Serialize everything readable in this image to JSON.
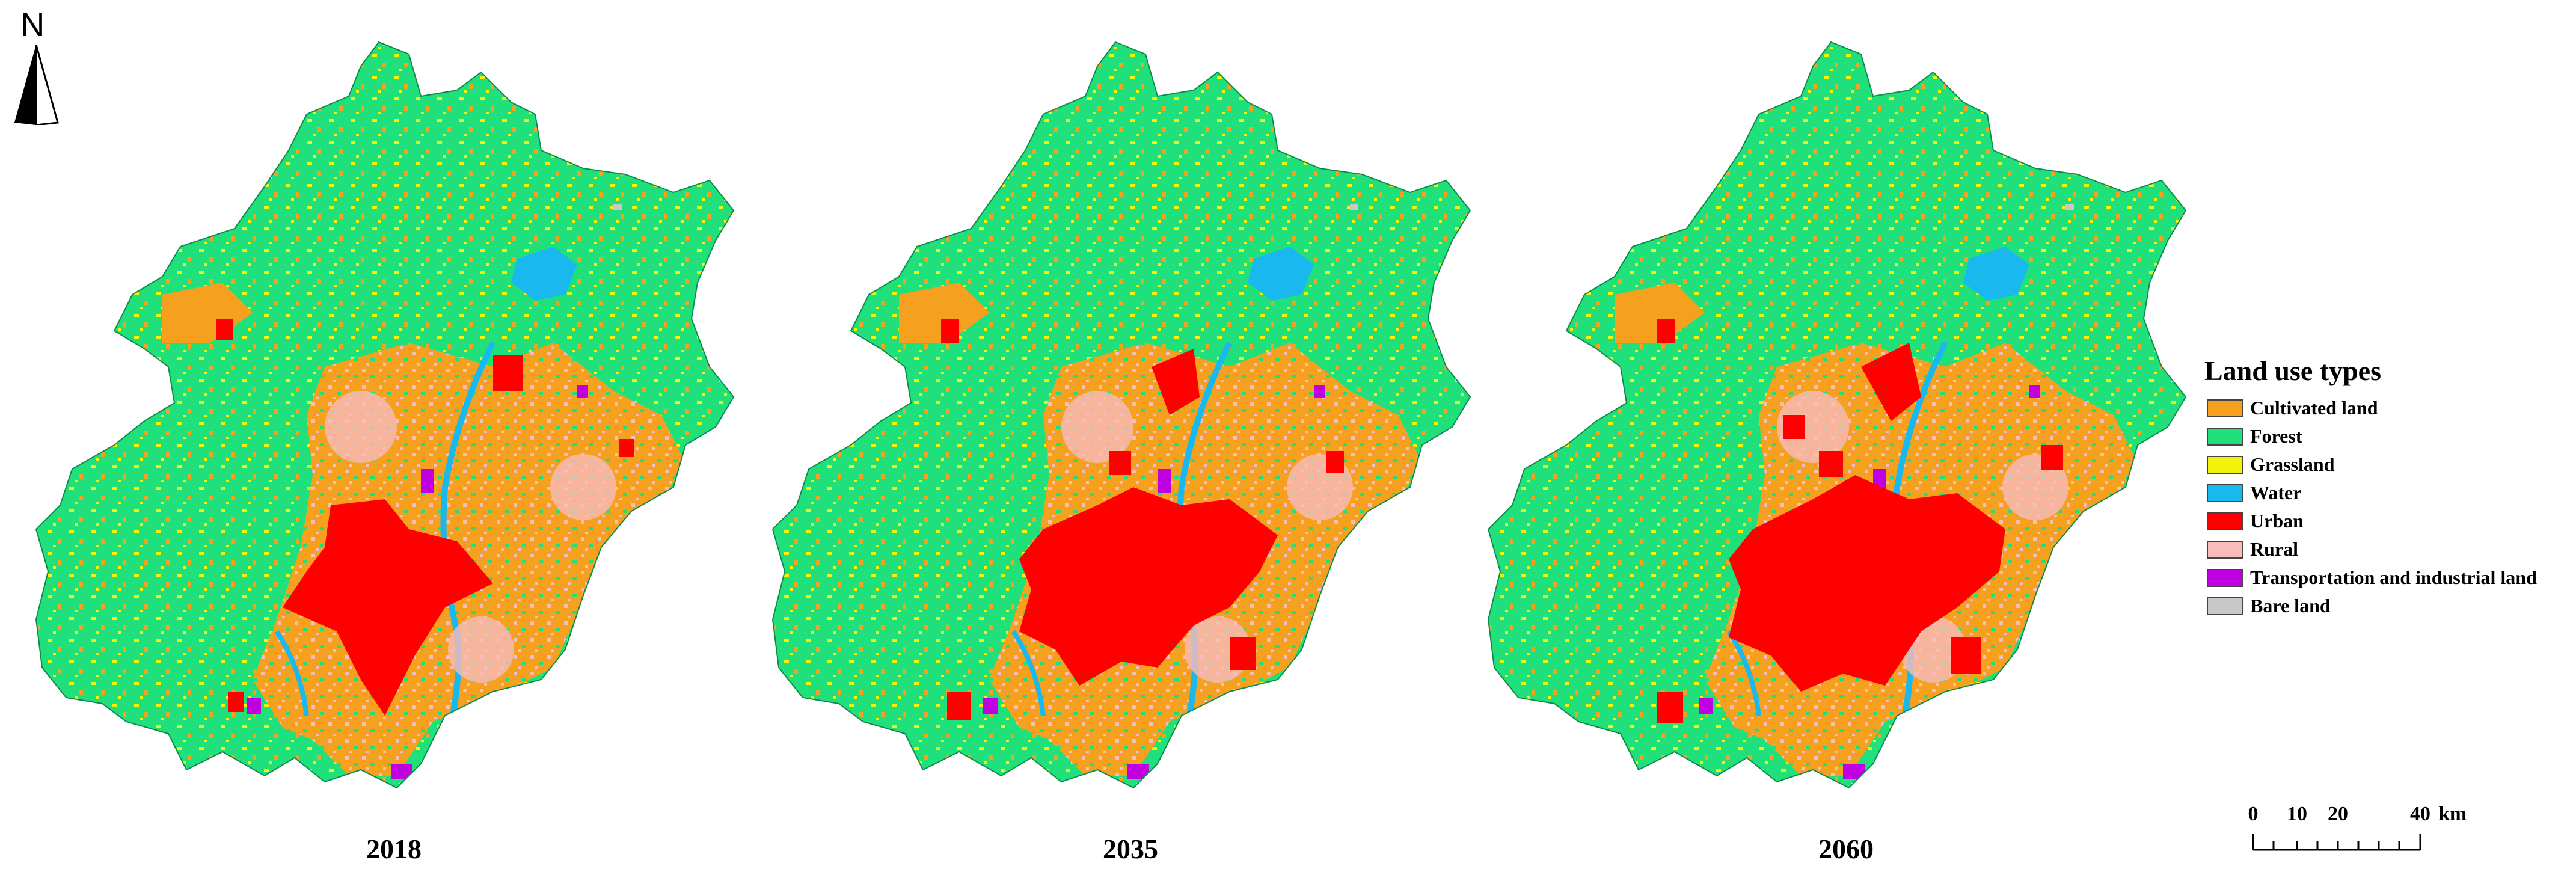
{
  "north_arrow": {
    "letter": "N"
  },
  "maps": [
    {
      "year": "2018"
    },
    {
      "year": "2035"
    },
    {
      "year": "2060"
    }
  ],
  "legend": {
    "title": "Land use types",
    "items": [
      {
        "label": "Cultivated land",
        "color": "#f5a01e"
      },
      {
        "label": "Forest",
        "color": "#1fe07a"
      },
      {
        "label": "Grassland",
        "color": "#f2f20a"
      },
      {
        "label": "Water",
        "color": "#19b8ee"
      },
      {
        "label": "Urban",
        "color": "#ff0000"
      },
      {
        "label": "Rural",
        "color": "#f7bcbc"
      },
      {
        "label": "Transportation and industrial land",
        "color": "#c000e0"
      },
      {
        "label": "Bare land",
        "color": "#c8c8c8"
      }
    ]
  },
  "scale_bar": {
    "ticks": [
      "0",
      "10",
      "20",
      "40"
    ],
    "unit": "km"
  }
}
